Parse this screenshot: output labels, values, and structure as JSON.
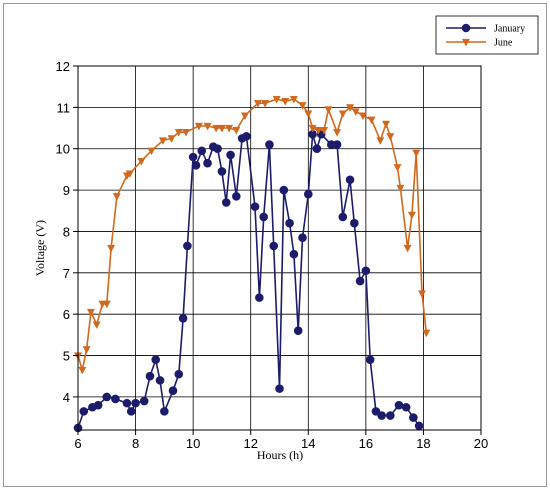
{
  "chart_data": {
    "type": "line",
    "title": "",
    "xlabel": "Hours (h)",
    "ylabel": "Voltage (V)",
    "xlim": [
      6,
      20
    ],
    "ylim": [
      3.2,
      12
    ],
    "xticks": [
      6,
      8,
      10,
      12,
      14,
      16,
      18,
      20
    ],
    "yticks": [
      4,
      5,
      6,
      7,
      8,
      9,
      10,
      11,
      12
    ],
    "grid": true,
    "legend": "top-right",
    "series": [
      {
        "name": "January",
        "color": "#1c1c6b",
        "marker": "circle",
        "points": [
          [
            6.0,
            3.25
          ],
          [
            6.2,
            3.65
          ],
          [
            6.5,
            3.75
          ],
          [
            6.7,
            3.8
          ],
          [
            7.0,
            4.0
          ],
          [
            7.3,
            3.95
          ],
          [
            7.7,
            3.85
          ],
          [
            7.85,
            3.65
          ],
          [
            8.0,
            3.85
          ],
          [
            8.3,
            3.9
          ],
          [
            8.5,
            4.5
          ],
          [
            8.7,
            4.9
          ],
          [
            8.85,
            4.4
          ],
          [
            9.0,
            3.65
          ],
          [
            9.3,
            4.15
          ],
          [
            9.5,
            4.55
          ],
          [
            9.65,
            5.9
          ],
          [
            9.8,
            7.65
          ],
          [
            10.0,
            9.8
          ],
          [
            10.1,
            9.6
          ],
          [
            10.3,
            9.95
          ],
          [
            10.5,
            9.65
          ],
          [
            10.7,
            10.05
          ],
          [
            10.85,
            10.0
          ],
          [
            11.0,
            9.45
          ],
          [
            11.15,
            8.7
          ],
          [
            11.3,
            9.85
          ],
          [
            11.5,
            8.85
          ],
          [
            11.7,
            10.25
          ],
          [
            11.85,
            10.3
          ],
          [
            12.15,
            8.6
          ],
          [
            12.3,
            6.4
          ],
          [
            12.45,
            8.35
          ],
          [
            12.65,
            10.1
          ],
          [
            12.8,
            7.65
          ],
          [
            13.0,
            4.2
          ],
          [
            13.15,
            9.0
          ],
          [
            13.35,
            8.2
          ],
          [
            13.5,
            7.45
          ],
          [
            13.65,
            5.6
          ],
          [
            13.8,
            7.85
          ],
          [
            14.0,
            8.9
          ],
          [
            14.15,
            10.35
          ],
          [
            14.3,
            10.0
          ],
          [
            14.45,
            10.35
          ],
          [
            14.8,
            10.1
          ],
          [
            15.0,
            10.1
          ],
          [
            15.2,
            8.35
          ],
          [
            15.45,
            9.25
          ],
          [
            15.6,
            8.2
          ],
          [
            15.8,
            6.8
          ],
          [
            16.0,
            7.05
          ],
          [
            16.15,
            4.9
          ],
          [
            16.35,
            3.65
          ],
          [
            16.55,
            3.55
          ],
          [
            16.85,
            3.55
          ],
          [
            17.15,
            3.8
          ],
          [
            17.4,
            3.75
          ],
          [
            17.65,
            3.5
          ],
          [
            17.85,
            3.3
          ]
        ]
      },
      {
        "name": "June",
        "color": "#d2691e",
        "marker": "triangle-down",
        "points": [
          [
            6.0,
            5.0
          ],
          [
            6.15,
            4.65
          ],
          [
            6.3,
            5.15
          ],
          [
            6.45,
            6.05
          ],
          [
            6.65,
            5.75
          ],
          [
            6.85,
            6.25
          ],
          [
            7.0,
            6.25
          ],
          [
            7.15,
            7.6
          ],
          [
            7.35,
            8.85
          ],
          [
            7.7,
            9.35
          ],
          [
            7.8,
            9.4
          ],
          [
            8.2,
            9.7
          ],
          [
            8.55,
            9.95
          ],
          [
            8.95,
            10.2
          ],
          [
            9.25,
            10.25
          ],
          [
            9.5,
            10.4
          ],
          [
            9.75,
            10.4
          ],
          [
            10.2,
            10.55
          ],
          [
            10.5,
            10.55
          ],
          [
            10.8,
            10.5
          ],
          [
            11.0,
            10.5
          ],
          [
            11.25,
            10.5
          ],
          [
            11.5,
            10.45
          ],
          [
            11.8,
            10.8
          ],
          [
            12.25,
            11.1
          ],
          [
            12.5,
            11.1
          ],
          [
            12.9,
            11.2
          ],
          [
            13.2,
            11.15
          ],
          [
            13.5,
            11.2
          ],
          [
            13.8,
            11.05
          ],
          [
            14.0,
            10.85
          ],
          [
            14.15,
            10.5
          ],
          [
            14.35,
            10.45
          ],
          [
            14.55,
            10.45
          ],
          [
            14.7,
            10.95
          ],
          [
            15.0,
            10.4
          ],
          [
            15.2,
            10.85
          ],
          [
            15.45,
            11.0
          ],
          [
            15.65,
            10.9
          ],
          [
            15.9,
            10.8
          ],
          [
            16.2,
            10.7
          ],
          [
            16.5,
            10.2
          ],
          [
            16.7,
            10.6
          ],
          [
            16.85,
            10.3
          ],
          [
            17.1,
            9.55
          ],
          [
            17.2,
            9.05
          ],
          [
            17.45,
            7.6
          ],
          [
            17.6,
            8.4
          ],
          [
            17.75,
            9.9
          ],
          [
            17.95,
            6.5
          ],
          [
            18.1,
            5.55
          ]
        ]
      }
    ]
  }
}
